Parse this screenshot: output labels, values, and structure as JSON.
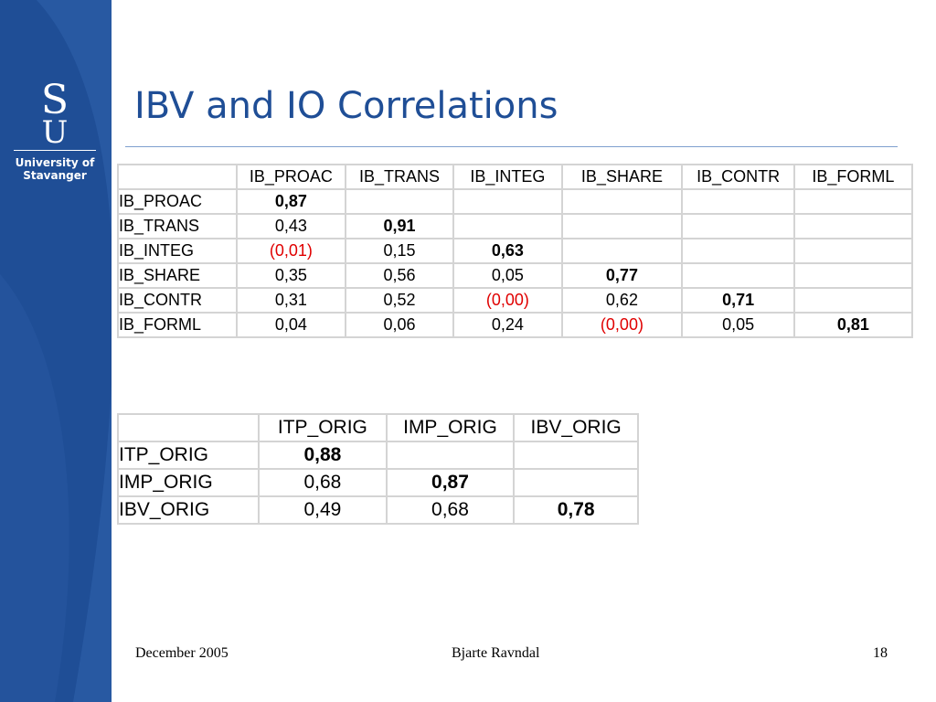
{
  "logo": {
    "letter_top": "S",
    "letter_bottom": "U",
    "line1": "University of",
    "line2": "Stavanger"
  },
  "title": "IBV and IO Correlations",
  "table1": {
    "headers": [
      "",
      "IB_PROAC",
      "IB_TRANS",
      "IB_INTEG",
      "IB_SHARE",
      "IB_CONTR",
      "IB_FORML"
    ],
    "rows": [
      {
        "label": "IB_PROAC",
        "cells": [
          {
            "v": "0,87",
            "s": "bold"
          },
          {
            "v": "",
            "s": ""
          },
          {
            "v": "",
            "s": ""
          },
          {
            "v": "",
            "s": ""
          },
          {
            "v": "",
            "s": ""
          },
          {
            "v": "",
            "s": ""
          }
        ]
      },
      {
        "label": "IB_TRANS",
        "cells": [
          {
            "v": "0,43",
            "s": ""
          },
          {
            "v": "0,91",
            "s": "bold"
          },
          {
            "v": "",
            "s": ""
          },
          {
            "v": "",
            "s": ""
          },
          {
            "v": "",
            "s": ""
          },
          {
            "v": "",
            "s": ""
          }
        ]
      },
      {
        "label": "IB_INTEG",
        "cells": [
          {
            "v": "(0,01)",
            "s": "red"
          },
          {
            "v": "0,15",
            "s": ""
          },
          {
            "v": "0,63",
            "s": "bold"
          },
          {
            "v": "",
            "s": ""
          },
          {
            "v": "",
            "s": ""
          },
          {
            "v": "",
            "s": ""
          }
        ]
      },
      {
        "label": "IB_SHARE",
        "cells": [
          {
            "v": "0,35",
            "s": ""
          },
          {
            "v": "0,56",
            "s": ""
          },
          {
            "v": "0,05",
            "s": ""
          },
          {
            "v": "0,77",
            "s": "bold"
          },
          {
            "v": "",
            "s": ""
          },
          {
            "v": "",
            "s": ""
          }
        ]
      },
      {
        "label": "IB_CONTR",
        "cells": [
          {
            "v": "0,31",
            "s": ""
          },
          {
            "v": "0,52",
            "s": ""
          },
          {
            "v": "(0,00)",
            "s": "red"
          },
          {
            "v": "0,62",
            "s": ""
          },
          {
            "v": "0,71",
            "s": "bold"
          },
          {
            "v": "",
            "s": ""
          }
        ]
      },
      {
        "label": "IB_FORML",
        "cells": [
          {
            "v": "0,04",
            "s": ""
          },
          {
            "v": "0,06",
            "s": ""
          },
          {
            "v": "0,24",
            "s": ""
          },
          {
            "v": "(0,00)",
            "s": "red"
          },
          {
            "v": "0,05",
            "s": ""
          },
          {
            "v": "0,81",
            "s": "bold"
          }
        ]
      }
    ]
  },
  "table2": {
    "headers": [
      "",
      "ITP_ORIG",
      "IMP_ORIG",
      "IBV_ORIG"
    ],
    "rows": [
      {
        "label": "ITP_ORIG",
        "cells": [
          {
            "v": "0,88",
            "s": "bold"
          },
          {
            "v": "",
            "s": ""
          },
          {
            "v": "",
            "s": ""
          }
        ]
      },
      {
        "label": "IMP_ORIG",
        "cells": [
          {
            "v": "0,68",
            "s": ""
          },
          {
            "v": "0,87",
            "s": "bold"
          },
          {
            "v": "",
            "s": ""
          }
        ]
      },
      {
        "label": "IBV_ORIG",
        "cells": [
          {
            "v": "0,49",
            "s": ""
          },
          {
            "v": "0,68",
            "s": ""
          },
          {
            "v": "0,78",
            "s": "bold"
          }
        ]
      }
    ]
  },
  "footer": {
    "date": "December 2005",
    "author": "Bjarte Ravndal",
    "page": "18"
  },
  "colors": {
    "sidebar": "#1f4e96",
    "title": "#1f4e96",
    "highlight_negative": "#e00000"
  }
}
